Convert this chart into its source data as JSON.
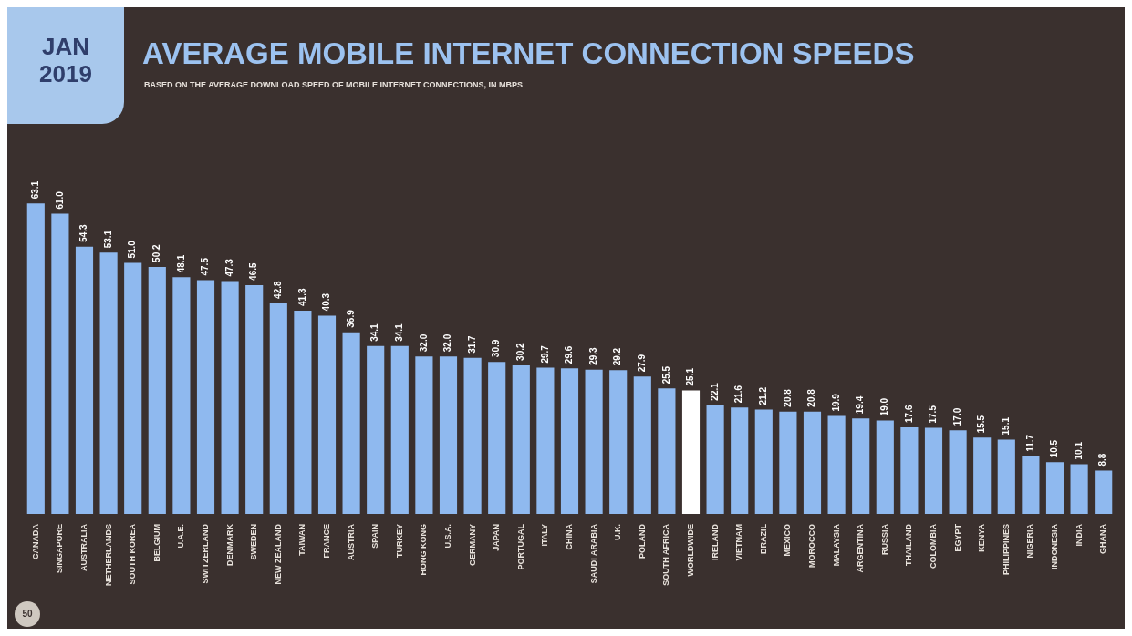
{
  "chart_data": {
    "type": "bar",
    "title": "AVERAGE MOBILE INTERNET CONNECTION SPEEDS",
    "subtitle": "BASED ON THE AVERAGE DOWNLOAD SPEED OF MOBILE INTERNET CONNECTIONS, IN MBPS",
    "annotations": [
      "JAN 2019",
      "50"
    ],
    "categories": [
      "CANADA",
      "SINGAPORE",
      "AUSTRALIA",
      "NETHERLANDS",
      "SOUTH KOREA",
      "BELGIUM",
      "U.A.E.",
      "SWITZERLAND",
      "DENMARK",
      "SWEDEN",
      "NEW ZEALAND",
      "TAIWAN",
      "FRANCE",
      "AUSTRIA",
      "SPAIN",
      "TURKEY",
      "HONG KONG",
      "U.S.A.",
      "GERMANY",
      "JAPAN",
      "PORTUGAL",
      "ITALY",
      "CHINA",
      "SAUDI ARABIA",
      "U.K.",
      "POLAND",
      "SOUTH AFRICA",
      "WORLDWIDE",
      "IRELAND",
      "VIETNAM",
      "BRAZIL",
      "MEXICO",
      "MOROCCO",
      "MALAYSIA",
      "ARGENTINA",
      "RUSSIA",
      "THAILAND",
      "COLOMBIA",
      "EGYPT",
      "KENYA",
      "PHILIPPINES",
      "NIGERIA",
      "INDONESIA",
      "INDIA",
      "GHANA"
    ],
    "values": [
      63.1,
      61.0,
      54.3,
      53.1,
      51.0,
      50.2,
      48.1,
      47.5,
      47.3,
      46.5,
      42.8,
      41.3,
      40.3,
      36.9,
      34.1,
      34.1,
      32.0,
      32.0,
      31.7,
      30.9,
      30.2,
      29.7,
      29.6,
      29.3,
      29.2,
      27.9,
      25.5,
      25.1,
      22.1,
      21.6,
      21.2,
      20.8,
      20.8,
      19.9,
      19.4,
      19.0,
      17.6,
      17.5,
      17.0,
      15.5,
      15.1,
      11.7,
      10.5,
      10.1,
      8.8
    ],
    "value_labels": [
      "63.1",
      "61.0",
      "54.3",
      "53.1",
      "51.0",
      "50.2",
      "48.1",
      "47.5",
      "47.3",
      "46.5",
      "42.8",
      "41.3",
      "40.3",
      "36.9",
      "34.1",
      "34.1",
      "32.0",
      "32.0",
      "31.7",
      "30.9",
      "30.2",
      "29.7",
      "29.6",
      "29.3",
      "29.2",
      "27.9",
      "25.5",
      "25.1",
      "22.1",
      "21.6",
      "21.2",
      "20.8",
      "20.8",
      "19.9",
      "19.4",
      "19.0",
      "17.6",
      "17.5",
      "17.0",
      "15.5",
      "15.1",
      "11.7",
      "10.5",
      "10.1",
      "8.8"
    ],
    "colors": [
      "#8fb9ef",
      "#8fb9ef",
      "#8fb9ef",
      "#8fb9ef",
      "#8fb9ef",
      "#8fb9ef",
      "#8fb9ef",
      "#8fb9ef",
      "#8fb9ef",
      "#8fb9ef",
      "#8fb9ef",
      "#8fb9ef",
      "#8fb9ef",
      "#8fb9ef",
      "#8fb9ef",
      "#8fb9ef",
      "#8fb9ef",
      "#8fb9ef",
      "#8fb9ef",
      "#8fb9ef",
      "#8fb9ef",
      "#8fb9ef",
      "#8fb9ef",
      "#8fb9ef",
      "#8fb9ef",
      "#8fb9ef",
      "#8fb9ef",
      "#ffffff",
      "#8fb9ef",
      "#8fb9ef",
      "#8fb9ef",
      "#8fb9ef",
      "#8fb9ef",
      "#8fb9ef",
      "#8fb9ef",
      "#8fb9ef",
      "#8fb9ef",
      "#8fb9ef",
      "#8fb9ef",
      "#8fb9ef",
      "#8fb9ef",
      "#8fb9ef",
      "#8fb9ef",
      "#8fb9ef",
      "#8fb9ef"
    ],
    "relative": false,
    "grid": false,
    "legend": false
  }
}
